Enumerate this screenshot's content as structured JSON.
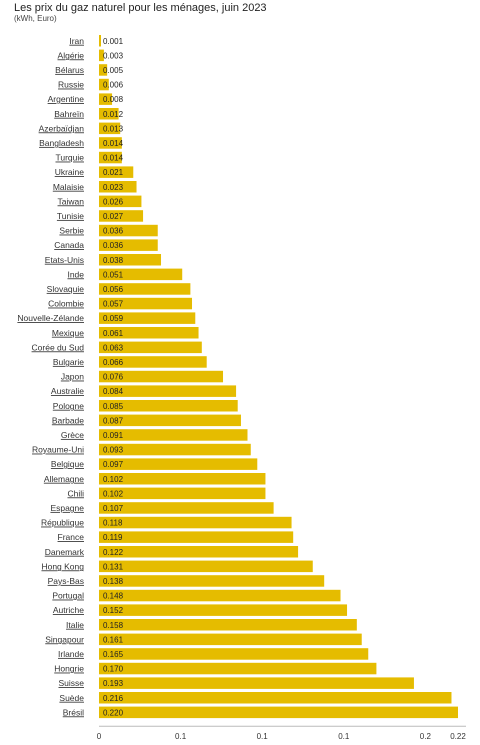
{
  "chart_data": {
    "type": "bar",
    "orientation": "horizontal",
    "title": "Les prix du gaz naturel pour les ménages, juin 2023",
    "subtitle": "(kWh, Euro)",
    "xlabel": "",
    "ylabel": "",
    "xlim": [
      0,
      0.22
    ],
    "x_tick_labels": [
      "0",
      "0.1",
      "0.1",
      "0.1",
      "0.2",
      "0.22"
    ],
    "bar_color": "#E5BC00",
    "categories": [
      "Iran",
      "Algérie",
      "Bélarus",
      "Russie",
      "Argentine",
      "Bahreïn",
      "Azerbaïdjan",
      "Bangladesh",
      "Turquie",
      "Ukraine",
      "Malaisie",
      "Taiwan",
      "Tunisie",
      "Serbie",
      "Canada",
      "Etats-Unis",
      "Inde",
      "Slovaquie",
      "Colombie",
      "Nouvelle-Zélande",
      "Mexique",
      "Corée du Sud",
      "Bulgarie",
      "Japon",
      "Australie",
      "Pologne",
      "Barbade",
      "Grèce",
      "Royaume-Uni",
      "Belgique",
      "Allemagne",
      "Chili",
      "Espagne",
      "République",
      "France",
      "Danemark",
      "Hong Kong",
      "Pays-Bas",
      "Portugal",
      "Autriche",
      "Italie",
      "Singapour",
      "Irlande",
      "Hongrie",
      "Suisse",
      "Suède",
      "Brésil"
    ],
    "values": [
      0.001,
      0.003,
      0.005,
      0.006,
      0.008,
      0.012,
      0.013,
      0.014,
      0.014,
      0.021,
      0.023,
      0.026,
      0.027,
      0.036,
      0.036,
      0.038,
      0.051,
      0.056,
      0.057,
      0.059,
      0.061,
      0.063,
      0.066,
      0.076,
      0.084,
      0.085,
      0.087,
      0.091,
      0.093,
      0.097,
      0.102,
      0.102,
      0.107,
      0.118,
      0.119,
      0.122,
      0.131,
      0.138,
      0.148,
      0.152,
      0.158,
      0.161,
      0.165,
      0.17,
      0.193,
      0.216,
      0.22
    ],
    "value_labels": [
      "0.001",
      "0.003",
      "0.005",
      "0.006",
      "0.008",
      "0.012",
      "0.013",
      "0.014",
      "0.014",
      "0.021",
      "0.023",
      "0.026",
      "0.027",
      "0.036",
      "0.036",
      "0.038",
      "0.051",
      "0.056",
      "0.057",
      "0.059",
      "0.061",
      "0.063",
      "0.066",
      "0.076",
      "0.084",
      "0.085",
      "0.087",
      "0.091",
      "0.093",
      "0.097",
      "0.102",
      "0.102",
      "0.107",
      "0.118",
      "0.119",
      "0.122",
      "0.131",
      "0.138",
      "0.148",
      "0.152",
      "0.158",
      "0.161",
      "0.165",
      "0.170",
      "0.193",
      "0.216",
      "0.220"
    ],
    "grid": false,
    "legend": "none"
  }
}
